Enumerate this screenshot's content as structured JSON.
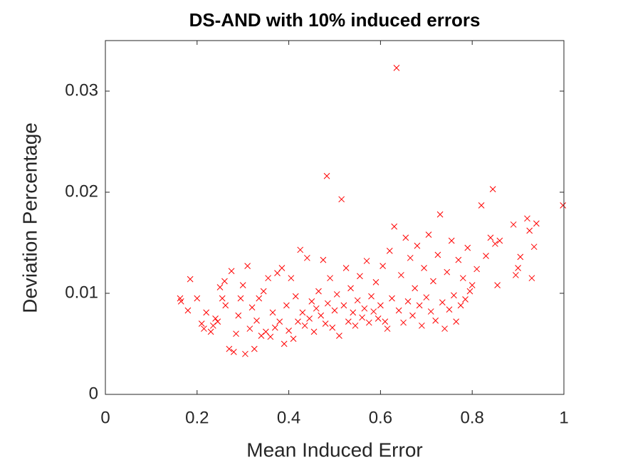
{
  "chart_data": {
    "type": "scatter",
    "title": "DS-AND with 10% induced errors",
    "x_label": "Mean Induced Error",
    "y_label": "Deviation Percentage",
    "color": "#ff0000",
    "marker": "x",
    "xlim": [
      0,
      1
    ],
    "ylim": [
      0,
      0.035
    ],
    "xticks": [
      0,
      0.2,
      0.4,
      0.6,
      0.8,
      1
    ],
    "yticks": [
      0,
      0.01,
      0.02,
      0.03
    ],
    "x": [
      0.163,
      0.165,
      0.18,
      0.185,
      0.2,
      0.21,
      0.215,
      0.22,
      0.23,
      0.235,
      0.24,
      0.245,
      0.25,
      0.255,
      0.26,
      0.262,
      0.27,
      0.275,
      0.28,
      0.285,
      0.29,
      0.295,
      0.3,
      0.305,
      0.31,
      0.315,
      0.32,
      0.325,
      0.33,
      0.335,
      0.34,
      0.345,
      0.35,
      0.355,
      0.36,
      0.365,
      0.37,
      0.375,
      0.38,
      0.385,
      0.39,
      0.395,
      0.4,
      0.405,
      0.41,
      0.415,
      0.42,
      0.425,
      0.43,
      0.435,
      0.44,
      0.445,
      0.45,
      0.455,
      0.46,
      0.465,
      0.47,
      0.475,
      0.48,
      0.483,
      0.485,
      0.49,
      0.495,
      0.5,
      0.505,
      0.51,
      0.515,
      0.52,
      0.525,
      0.53,
      0.535,
      0.54,
      0.545,
      0.55,
      0.555,
      0.56,
      0.565,
      0.57,
      0.575,
      0.58,
      0.585,
      0.59,
      0.595,
      0.6,
      0.605,
      0.61,
      0.615,
      0.62,
      0.625,
      0.63,
      0.635,
      0.64,
      0.645,
      0.65,
      0.655,
      0.66,
      0.665,
      0.67,
      0.675,
      0.68,
      0.685,
      0.69,
      0.695,
      0.7,
      0.705,
      0.71,
      0.715,
      0.72,
      0.725,
      0.73,
      0.735,
      0.74,
      0.745,
      0.75,
      0.755,
      0.76,
      0.765,
      0.77,
      0.775,
      0.78,
      0.785,
      0.79,
      0.795,
      0.8,
      0.81,
      0.82,
      0.83,
      0.84,
      0.845,
      0.85,
      0.855,
      0.86,
      0.89,
      0.895,
      0.9,
      0.905,
      0.92,
      0.925,
      0.93,
      0.935,
      0.94,
      0.998
    ],
    "values": [
      0.0095,
      0.0092,
      0.0083,
      0.0114,
      0.0095,
      0.007,
      0.0065,
      0.0081,
      0.0062,
      0.0068,
      0.0075,
      0.0072,
      0.0106,
      0.0095,
      0.0112,
      0.0088,
      0.0045,
      0.0122,
      0.0042,
      0.006,
      0.0078,
      0.0095,
      0.0108,
      0.004,
      0.0127,
      0.0065,
      0.0086,
      0.0045,
      0.0073,
      0.0095,
      0.0058,
      0.0102,
      0.0062,
      0.0115,
      0.0057,
      0.0081,
      0.0066,
      0.012,
      0.0072,
      0.0125,
      0.005,
      0.0088,
      0.0063,
      0.0115,
      0.0055,
      0.0097,
      0.0072,
      0.0143,
      0.0081,
      0.0068,
      0.0135,
      0.0075,
      0.0092,
      0.0062,
      0.0085,
      0.0102,
      0.0078,
      0.0133,
      0.007,
      0.0216,
      0.009,
      0.0115,
      0.0066,
      0.0083,
      0.0099,
      0.0058,
      0.0193,
      0.0088,
      0.0125,
      0.0072,
      0.0105,
      0.0081,
      0.0068,
      0.0093,
      0.0117,
      0.0076,
      0.0085,
      0.0132,
      0.0071,
      0.0097,
      0.0082,
      0.0111,
      0.0075,
      0.0088,
      0.0127,
      0.0072,
      0.0065,
      0.0142,
      0.0095,
      0.0166,
      0.0323,
      0.0083,
      0.0118,
      0.0071,
      0.0155,
      0.0092,
      0.0135,
      0.0078,
      0.0105,
      0.0147,
      0.0088,
      0.0068,
      0.0125,
      0.0096,
      0.0158,
      0.0082,
      0.0112,
      0.0073,
      0.0138,
      0.0178,
      0.0091,
      0.0065,
      0.0121,
      0.0084,
      0.0152,
      0.0098,
      0.0072,
      0.0133,
      0.0088,
      0.0115,
      0.0094,
      0.0145,
      0.0102,
      0.0108,
      0.0124,
      0.0187,
      0.0137,
      0.0155,
      0.0203,
      0.0149,
      0.0108,
      0.0152,
      0.0168,
      0.0118,
      0.0125,
      0.0136,
      0.0174,
      0.0162,
      0.0115,
      0.0146,
      0.0169,
      0.0187
    ]
  }
}
